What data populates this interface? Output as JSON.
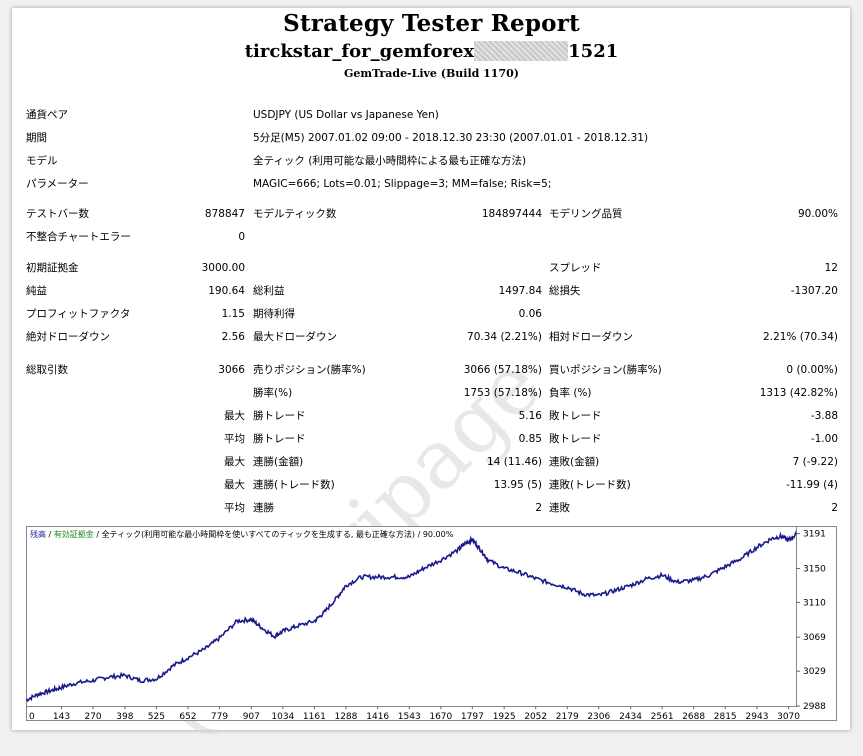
{
  "header": {
    "title": "Strategy Tester Report",
    "ea_name": "tirckstar_for_gemforex",
    "account_suffix": "1521",
    "server": "GemTrade-Live (Build 1170)"
  },
  "info": {
    "pair_label": "通貨ペア",
    "pair_value": "USDJPY (US Dollar vs Japanese Yen)",
    "period_label": "期間",
    "period_value": "5分足(M5) 2007.01.02 09:00 - 2018.12.30 23:30 (2007.01.01 - 2018.12.31)",
    "model_label": "モデル",
    "model_value": "全ティック (利用可能な最小時間枠による最も正確な方法)",
    "params_label": "パラメーター",
    "params_value": "MAGIC=666; Lots=0.01; Slippage=3; MM=false; Risk=5;"
  },
  "stats": {
    "bars_label": "テストバー数",
    "bars_value": "878847",
    "ticks_label": "モデルティック数",
    "ticks_value": "184897444",
    "quality_label": "モデリング品質",
    "quality_value": "90.00%",
    "mismatch_label": "不整合チャートエラー",
    "mismatch_value": "0",
    "deposit_label": "初期証拠金",
    "deposit_value": "3000.00",
    "spread_label": "スプレッド",
    "spread_value": "12",
    "net_label": "純益",
    "net_value": "190.64",
    "gross_profit_label": "総利益",
    "gross_profit_value": "1497.84",
    "gross_loss_label": "総損失",
    "gross_loss_value": "-1307.20",
    "pf_label": "プロフィットファクタ",
    "pf_value": "1.15",
    "expected_label": "期待利得",
    "expected_value": "0.06",
    "abs_dd_label": "絶対ドローダウン",
    "abs_dd_value": "2.56",
    "max_dd_label": "最大ドローダウン",
    "max_dd_value": "70.34 (2.21%)",
    "rel_dd_label": "相対ドローダウン",
    "rel_dd_value": "2.21% (70.34)",
    "trades_label": "総取引数",
    "trades_value": "3066",
    "short_label": "売りポジション(勝率%)",
    "short_value": "3066 (57.18%)",
    "long_label": "買いポジション(勝率%)",
    "long_value": "0 (0.00%)",
    "win_label": "勝率(%)",
    "win_value": "1753 (57.18%)",
    "loss_label": "負率 (%)",
    "loss_value": "1313 (42.82%)",
    "max_word": "最大",
    "avg_word": "平均",
    "max_win_label": "勝トレード",
    "max_win_value": "5.16",
    "max_loss_label": "敗トレード",
    "max_loss_value": "-3.88",
    "avg_win_label": "勝トレード",
    "avg_win_value": "0.85",
    "avg_loss_label": "敗トレード",
    "avg_loss_value": "-1.00",
    "cons_wins_money_label": "連勝(金額)",
    "cons_wins_money_value": "14 (11.46)",
    "cons_losses_money_label": "連敗(金額)",
    "cons_losses_money_value": "7 (-9.22)",
    "cons_profit_label": "連勝(トレード数)",
    "cons_profit_value": "13.95 (5)",
    "cons_loss_label": "連敗(トレード数)",
    "cons_loss_value": "-11.99 (4)",
    "avg_cons_wins_label": "連勝",
    "avg_cons_wins_value": "2",
    "avg_cons_losses_label": "連敗",
    "avg_cons_losses_value": "2"
  },
  "watermark": "(C)horipage",
  "chart_legend": {
    "balance": "残高",
    "sep1": " / ",
    "equity": "有効証拠金",
    "rest": " / 全ティック(利用可能な最小時間枠を使いすべてのティックを生成する, 最も正確な方法) / 90.00%"
  },
  "chart_data": {
    "type": "line",
    "x_ticks": [
      0,
      143,
      270,
      398,
      525,
      652,
      779,
      907,
      1034,
      1161,
      1288,
      1416,
      1543,
      1670,
      1797,
      1925,
      2052,
      2179,
      2306,
      2434,
      2561,
      2688,
      2815,
      2943,
      3070
    ],
    "y_ticks": [
      2988,
      3029,
      3069,
      3110,
      3150,
      3191
    ],
    "xlim": [
      0,
      3100
    ],
    "ylim": [
      2988,
      3200
    ],
    "colors": {
      "balance": "#1a1a8c",
      "equity": "#1a8c1a"
    },
    "series": [
      {
        "name": "残高",
        "x": [
          0,
          50,
          100,
          143,
          200,
          270,
          330,
          398,
          460,
          525,
          590,
          652,
          720,
          779,
          850,
          907,
          950,
          1000,
          1034,
          1090,
          1161,
          1200,
          1250,
          1288,
          1350,
          1416,
          1480,
          1543,
          1600,
          1670,
          1740,
          1770,
          1797,
          1830,
          1860,
          1925,
          1990,
          2052,
          2120,
          2179,
          2240,
          2306,
          2370,
          2434,
          2500,
          2561,
          2620,
          2688,
          2750,
          2815,
          2880,
          2943,
          3000,
          3040,
          3070,
          3100
        ],
        "y": [
          2995,
          3002,
          3006,
          3010,
          3015,
          3018,
          3022,
          3024,
          3018,
          3020,
          3035,
          3045,
          3055,
          3068,
          3088,
          3090,
          3080,
          3070,
          3076,
          3082,
          3088,
          3098,
          3115,
          3130,
          3140,
          3140,
          3140,
          3140,
          3150,
          3160,
          3172,
          3180,
          3184,
          3172,
          3160,
          3150,
          3145,
          3138,
          3132,
          3128,
          3120,
          3118,
          3124,
          3130,
          3138,
          3142,
          3134,
          3136,
          3142,
          3152,
          3162,
          3175,
          3185,
          3188,
          3183,
          3190
        ]
      }
    ]
  }
}
